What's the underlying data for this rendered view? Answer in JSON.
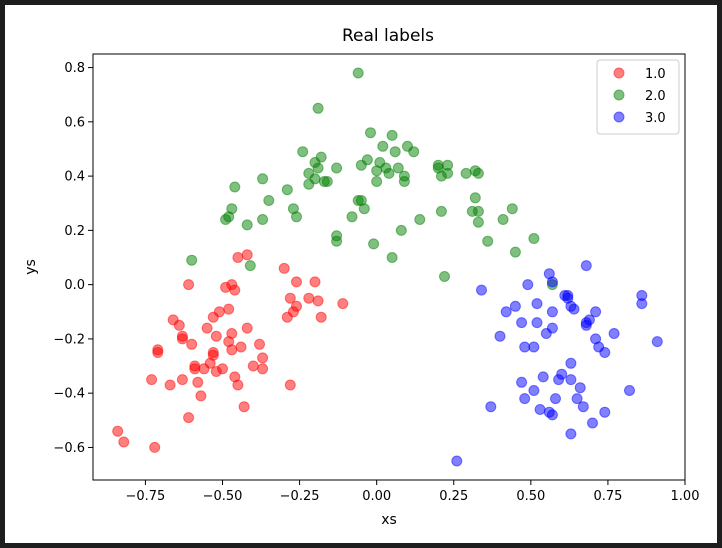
{
  "chart_data": {
    "type": "scatter",
    "title": "Real labels",
    "xlabel": "xs",
    "ylabel": "ys",
    "xlim": [
      -0.92,
      1.0
    ],
    "ylim": [
      -0.72,
      0.85
    ],
    "xticks": [
      -0.75,
      -0.5,
      -0.25,
      0.0,
      0.25,
      0.5,
      0.75,
      1.0
    ],
    "xtick_labels": [
      "−0.75",
      "−0.50",
      "−0.25",
      "0.00",
      "0.25",
      "0.50",
      "0.75",
      "1.00"
    ],
    "yticks": [
      -0.6,
      -0.4,
      -0.2,
      0.0,
      0.2,
      0.4,
      0.6,
      0.8
    ],
    "ytick_labels": [
      "−0.6",
      "−0.4",
      "−0.2",
      "0.0",
      "0.2",
      "0.4",
      "0.6",
      "0.8"
    ],
    "grid": false,
    "legend_position": "top-right",
    "marker_alpha": 0.5,
    "series": [
      {
        "name": "1.0",
        "color": "#ff0000",
        "points": [
          [
            -0.84,
            -0.54
          ],
          [
            -0.82,
            -0.58
          ],
          [
            -0.73,
            -0.35
          ],
          [
            -0.72,
            -0.6
          ],
          [
            -0.71,
            -0.24
          ],
          [
            -0.71,
            -0.25
          ],
          [
            -0.67,
            -0.37
          ],
          [
            -0.66,
            -0.13
          ],
          [
            -0.64,
            -0.15
          ],
          [
            -0.63,
            -0.2
          ],
          [
            -0.63,
            -0.19
          ],
          [
            -0.63,
            -0.35
          ],
          [
            -0.61,
            -0.49
          ],
          [
            -0.61,
            0.0
          ],
          [
            -0.6,
            -0.22
          ],
          [
            -0.59,
            -0.31
          ],
          [
            -0.59,
            -0.3
          ],
          [
            -0.58,
            -0.36
          ],
          [
            -0.57,
            -0.41
          ],
          [
            -0.56,
            -0.31
          ],
          [
            -0.55,
            -0.16
          ],
          [
            -0.54,
            -0.29
          ],
          [
            -0.53,
            -0.25
          ],
          [
            -0.53,
            -0.26
          ],
          [
            -0.53,
            -0.12
          ],
          [
            -0.52,
            -0.32
          ],
          [
            -0.52,
            -0.19
          ],
          [
            -0.51,
            -0.1
          ],
          [
            -0.5,
            -0.31
          ],
          [
            -0.49,
            -0.01
          ],
          [
            -0.48,
            -0.09
          ],
          [
            -0.48,
            -0.21
          ],
          [
            -0.47,
            -0.18
          ],
          [
            -0.47,
            -0.24
          ],
          [
            -0.47,
            0.0
          ],
          [
            -0.46,
            -0.02
          ],
          [
            -0.46,
            -0.34
          ],
          [
            -0.45,
            0.1
          ],
          [
            -0.45,
            -0.37
          ],
          [
            -0.44,
            -0.23
          ],
          [
            -0.43,
            -0.45
          ],
          [
            -0.42,
            -0.16
          ],
          [
            -0.42,
            0.11
          ],
          [
            -0.4,
            -0.3
          ],
          [
            -0.38,
            -0.22
          ],
          [
            -0.37,
            -0.27
          ],
          [
            -0.37,
            -0.31
          ],
          [
            -0.3,
            0.06
          ],
          [
            -0.29,
            -0.12
          ],
          [
            -0.28,
            -0.37
          ],
          [
            -0.28,
            -0.05
          ],
          [
            -0.27,
            -0.1
          ],
          [
            -0.26,
            -0.08
          ],
          [
            -0.26,
            0.01
          ],
          [
            -0.22,
            -0.05
          ],
          [
            -0.2,
            0.01
          ],
          [
            -0.19,
            -0.06
          ],
          [
            -0.18,
            -0.12
          ],
          [
            -0.11,
            -0.07
          ]
        ]
      },
      {
        "name": "2.0",
        "color": "#008000",
        "points": [
          [
            -0.6,
            0.09
          ],
          [
            -0.49,
            0.24
          ],
          [
            -0.48,
            0.25
          ],
          [
            -0.47,
            0.28
          ],
          [
            -0.46,
            0.36
          ],
          [
            -0.42,
            0.22
          ],
          [
            -0.41,
            0.07
          ],
          [
            -0.37,
            0.39
          ],
          [
            -0.37,
            0.24
          ],
          [
            -0.35,
            0.31
          ],
          [
            -0.29,
            0.35
          ],
          [
            -0.27,
            0.28
          ],
          [
            -0.26,
            0.25
          ],
          [
            -0.24,
            0.49
          ],
          [
            -0.22,
            0.37
          ],
          [
            -0.22,
            0.41
          ],
          [
            -0.2,
            0.45
          ],
          [
            -0.2,
            0.39
          ],
          [
            -0.19,
            0.65
          ],
          [
            -0.19,
            0.43
          ],
          [
            -0.18,
            0.47
          ],
          [
            -0.17,
            0.38
          ],
          [
            -0.16,
            0.38
          ],
          [
            -0.13,
            0.43
          ],
          [
            -0.13,
            0.16
          ],
          [
            -0.13,
            0.18
          ],
          [
            -0.08,
            0.25
          ],
          [
            -0.06,
            0.31
          ],
          [
            -0.06,
            0.78
          ],
          [
            -0.05,
            0.44
          ],
          [
            -0.05,
            0.31
          ],
          [
            -0.04,
            0.28
          ],
          [
            -0.03,
            0.46
          ],
          [
            -0.02,
            0.56
          ],
          [
            -0.01,
            0.15
          ],
          [
            0.0,
            0.38
          ],
          [
            0.0,
            0.42
          ],
          [
            0.01,
            0.45
          ],
          [
            0.02,
            0.51
          ],
          [
            0.03,
            0.43
          ],
          [
            0.04,
            0.41
          ],
          [
            0.05,
            0.1
          ],
          [
            0.05,
            0.55
          ],
          [
            0.06,
            0.49
          ],
          [
            0.07,
            0.43
          ],
          [
            0.08,
            0.2
          ],
          [
            0.09,
            0.4
          ],
          [
            0.09,
            0.38
          ],
          [
            0.1,
            0.51
          ],
          [
            0.12,
            0.49
          ],
          [
            0.14,
            0.24
          ],
          [
            0.2,
            0.43
          ],
          [
            0.2,
            0.44
          ],
          [
            0.21,
            0.4
          ],
          [
            0.21,
            0.27
          ],
          [
            0.22,
            0.03
          ],
          [
            0.23,
            0.41
          ],
          [
            0.23,
            0.44
          ],
          [
            0.29,
            0.41
          ],
          [
            0.31,
            0.27
          ],
          [
            0.32,
            0.42
          ],
          [
            0.32,
            0.32
          ],
          [
            0.33,
            0.27
          ],
          [
            0.33,
            0.41
          ],
          [
            0.33,
            0.23
          ],
          [
            0.36,
            0.16
          ],
          [
            0.41,
            0.24
          ],
          [
            0.44,
            0.28
          ],
          [
            0.45,
            0.12
          ],
          [
            0.51,
            0.17
          ],
          [
            0.57,
            0.0
          ]
        ]
      },
      {
        "name": "3.0",
        "color": "#0000ff",
        "points": [
          [
            0.26,
            -0.65
          ],
          [
            0.34,
            -0.02
          ],
          [
            0.37,
            -0.45
          ],
          [
            0.4,
            -0.19
          ],
          [
            0.42,
            -0.1
          ],
          [
            0.45,
            -0.08
          ],
          [
            0.47,
            -0.14
          ],
          [
            0.47,
            -0.36
          ],
          [
            0.48,
            -0.23
          ],
          [
            0.48,
            -0.42
          ],
          [
            0.49,
            0.0
          ],
          [
            0.51,
            -0.39
          ],
          [
            0.51,
            -0.23
          ],
          [
            0.52,
            -0.14
          ],
          [
            0.52,
            -0.07
          ],
          [
            0.53,
            -0.46
          ],
          [
            0.54,
            -0.34
          ],
          [
            0.55,
            -0.18
          ],
          [
            0.56,
            -0.47
          ],
          [
            0.56,
            0.04
          ],
          [
            0.57,
            -0.16
          ],
          [
            0.57,
            0.01
          ],
          [
            0.57,
            -0.1
          ],
          [
            0.57,
            -0.48
          ],
          [
            0.58,
            -0.42
          ],
          [
            0.59,
            -0.35
          ],
          [
            0.6,
            -0.33
          ],
          [
            0.61,
            -0.04
          ],
          [
            0.62,
            -0.04
          ],
          [
            0.62,
            -0.05
          ],
          [
            0.63,
            -0.29
          ],
          [
            0.63,
            -0.08
          ],
          [
            0.63,
            -0.55
          ],
          [
            0.63,
            -0.35
          ],
          [
            0.64,
            -0.09
          ],
          [
            0.65,
            -0.42
          ],
          [
            0.66,
            -0.38
          ],
          [
            0.67,
            -0.45
          ],
          [
            0.68,
            -0.15
          ],
          [
            0.68,
            -0.14
          ],
          [
            0.68,
            0.07
          ],
          [
            0.69,
            -0.13
          ],
          [
            0.7,
            -0.51
          ],
          [
            0.71,
            -0.2
          ],
          [
            0.71,
            -0.1
          ],
          [
            0.72,
            -0.23
          ],
          [
            0.74,
            -0.25
          ],
          [
            0.74,
            -0.47
          ],
          [
            0.77,
            -0.18
          ],
          [
            0.82,
            -0.39
          ],
          [
            0.86,
            -0.04
          ],
          [
            0.86,
            -0.07
          ],
          [
            0.91,
            -0.21
          ]
        ]
      }
    ]
  }
}
